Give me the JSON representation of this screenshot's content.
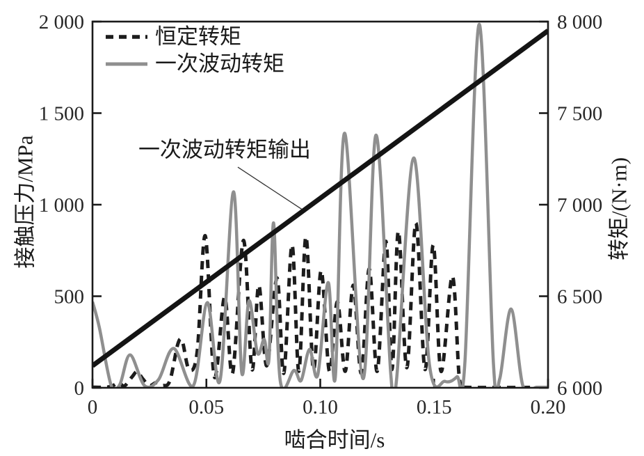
{
  "figure": {
    "background": "#ffffff",
    "frame_color": "#1a1a1a"
  },
  "chart_data": {
    "type": "line",
    "title": "",
    "xlabel": "啮合时间/s",
    "ylabel_left": "接触压力/MPa",
    "ylabel_right": "转矩/(N·m)",
    "xlim": [
      0,
      0.2
    ],
    "ylim_left": [
      0,
      2000
    ],
    "ylim_right": [
      6000,
      8000
    ],
    "xticks": [
      0,
      0.05,
      0.1,
      0.15,
      0.2
    ],
    "xtick_labels": [
      "0",
      "0.05",
      "0.10",
      "0.15",
      "0.20"
    ],
    "yticks_left": [
      0,
      500,
      1000,
      1500,
      2000
    ],
    "ytick_labels_left": [
      "0",
      "500",
      "1 000",
      "1 500",
      "2 000"
    ],
    "yticks_right": [
      6000,
      6500,
      7000,
      7500,
      8000
    ],
    "ytick_labels_right": [
      "6 000",
      "6 500",
      "7 000",
      "7 500",
      "8 000"
    ],
    "grid": false,
    "legend_position": "upper-left-inside",
    "annotation": {
      "text": "一次波动转矩输出",
      "text_at": [
        0.058,
        1310
      ],
      "leader_from": [
        0.0638,
        1205
      ],
      "leader_to": [
        0.0919,
        975
      ]
    },
    "series": [
      {
        "name": "恒定转矩",
        "axis": "left",
        "style": "dashed",
        "color": "#1c1c1c",
        "width": 5,
        "in_legend": true,
        "points": [
          [
            0.0,
            3
          ],
          [
            0.006,
            3
          ],
          [
            0.009,
            12
          ],
          [
            0.0115,
            28
          ],
          [
            0.014,
            10
          ],
          [
            0.0174,
            60
          ],
          [
            0.0196,
            88
          ],
          [
            0.022,
            50
          ],
          [
            0.025,
            12
          ],
          [
            0.028,
            28
          ],
          [
            0.031,
            12
          ],
          [
            0.034,
            40
          ],
          [
            0.0375,
            240
          ],
          [
            0.0395,
            250
          ],
          [
            0.0424,
            100
          ],
          [
            0.046,
            200
          ],
          [
            0.0495,
            830
          ],
          [
            0.0535,
            60
          ],
          [
            0.058,
            495
          ],
          [
            0.0615,
            80
          ],
          [
            0.0663,
            805
          ],
          [
            0.07,
            100
          ],
          [
            0.073,
            560
          ],
          [
            0.0765,
            120
          ],
          [
            0.081,
            600
          ],
          [
            0.084,
            80
          ],
          [
            0.0876,
            780
          ],
          [
            0.0906,
            90
          ],
          [
            0.0937,
            825
          ],
          [
            0.097,
            100
          ],
          [
            0.1004,
            640
          ],
          [
            0.104,
            90
          ],
          [
            0.1075,
            470
          ],
          [
            0.111,
            90
          ],
          [
            0.1145,
            560
          ],
          [
            0.118,
            80
          ],
          [
            0.1215,
            650
          ],
          [
            0.125,
            90
          ],
          [
            0.1288,
            800
          ],
          [
            0.1315,
            100
          ],
          [
            0.1343,
            855
          ],
          [
            0.138,
            110
          ],
          [
            0.142,
            900
          ],
          [
            0.146,
            100
          ],
          [
            0.1496,
            780
          ],
          [
            0.153,
            90
          ],
          [
            0.158,
            610
          ],
          [
            0.161,
            60
          ],
          [
            0.1635,
            10
          ],
          [
            0.166,
            2
          ],
          [
            0.2,
            2
          ]
        ]
      },
      {
        "name": "一次波动转矩",
        "axis": "left",
        "style": "solid",
        "color": "#8f8f8f",
        "width": 4.5,
        "in_legend": true,
        "points": [
          [
            0.0,
            470
          ],
          [
            0.003,
            330
          ],
          [
            0.0082,
            12
          ],
          [
            0.012,
            18
          ],
          [
            0.0165,
            180
          ],
          [
            0.0228,
            12
          ],
          [
            0.029,
            45
          ],
          [
            0.0357,
            215
          ],
          [
            0.0443,
            12
          ],
          [
            0.0504,
            465
          ],
          [
            0.056,
            40
          ],
          [
            0.0619,
            1070
          ],
          [
            0.0655,
            85
          ],
          [
            0.0687,
            475
          ],
          [
            0.0724,
            190
          ],
          [
            0.0754,
            265
          ],
          [
            0.0775,
            160
          ],
          [
            0.0795,
            900
          ],
          [
            0.0824,
            40
          ],
          [
            0.0885,
            95
          ],
          [
            0.0916,
            40
          ],
          [
            0.0953,
            210
          ],
          [
            0.0989,
            70
          ],
          [
            0.1035,
            575
          ],
          [
            0.1066,
            55
          ],
          [
            0.1107,
            1390
          ],
          [
            0.1188,
            50
          ],
          [
            0.1245,
            1380
          ],
          [
            0.131,
            70
          ],
          [
            0.1335,
            45
          ],
          [
            0.141,
            1255
          ],
          [
            0.148,
            120
          ],
          [
            0.1548,
            35
          ],
          [
            0.16,
            60
          ],
          [
            0.1635,
            140
          ],
          [
            0.1698,
            1985
          ],
          [
            0.176,
            140
          ],
          [
            0.1788,
            50
          ],
          [
            0.1838,
            430
          ],
          [
            0.189,
            8
          ],
          [
            0.195,
            3
          ],
          [
            0.2,
            3
          ]
        ]
      },
      {
        "name": "一次波动转矩输出",
        "axis": "right",
        "style": "solid",
        "color": "#141414",
        "width": 7,
        "in_legend": false,
        "points": [
          [
            0.0,
            6120
          ],
          [
            0.2,
            7950
          ]
        ]
      }
    ]
  }
}
